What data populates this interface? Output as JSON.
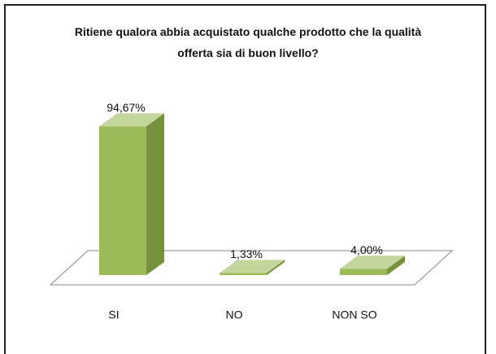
{
  "chart_data": {
    "type": "bar3d",
    "title": "Ritiene qualora abbia acquistato qualche prodotto che la qualità offerta sia di buon livello?",
    "categories": [
      "SI",
      "NO",
      "NON SO"
    ],
    "values": [
      94.67,
      1.33,
      4.0
    ],
    "value_labels": [
      "94,67%",
      "1,33%",
      "4,00%"
    ],
    "color": "#9bbb59"
  }
}
